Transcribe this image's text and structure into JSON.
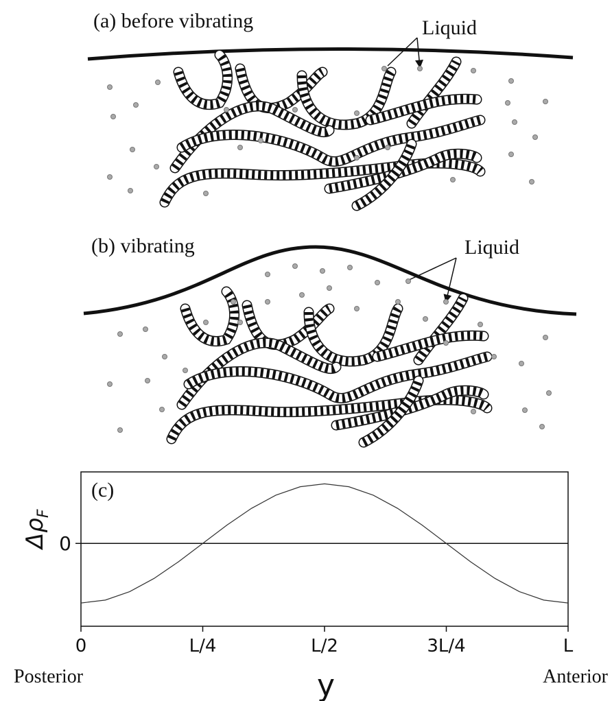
{
  "panels": [
    {
      "label": "(a) before vibrating",
      "annotation": "Liquid"
    },
    {
      "label": "(b) vibrating",
      "annotation": "Liquid"
    }
  ],
  "chart_data": {
    "type": "line",
    "annotation": "(c)",
    "ylabel": {
      "text": "Δρ",
      "subscript": "F"
    },
    "xlabel": "y",
    "x_left_label": "Posterior",
    "x_right_label": "Anterior",
    "x": [
      0,
      0.05,
      0.1,
      0.15,
      0.2,
      0.25,
      0.3,
      0.35,
      0.4,
      0.45,
      0.5,
      0.55,
      0.6,
      0.65,
      0.7,
      0.75,
      0.8,
      0.85,
      0.9,
      0.95,
      1
    ],
    "values": [
      -1,
      -0.951,
      -0.809,
      -0.588,
      -0.309,
      0,
      0.309,
      0.588,
      0.809,
      0.951,
      1,
      0.951,
      0.809,
      0.588,
      0.309,
      0,
      -0.309,
      -0.588,
      -0.809,
      -0.951,
      -1
    ],
    "color": "#333333",
    "xlim": [
      0,
      1
    ],
    "xticks": [
      0,
      {
        "value": 0.25,
        "label": "L/4"
      },
      {
        "value": 0.5,
        "label": "L/2"
      },
      {
        "value": 0.75,
        "label": "3L/4"
      },
      {
        "value": 1,
        "label": "L"
      }
    ],
    "ylim": [
      -1.39,
      1.2
    ],
    "yticks": [
      0
    ],
    "grid": true
  }
}
